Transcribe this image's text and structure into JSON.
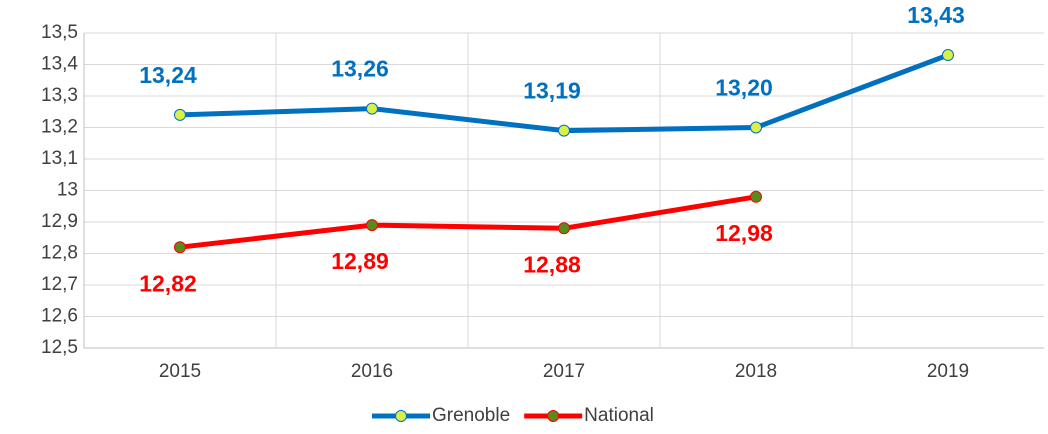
{
  "chart_data": {
    "type": "line",
    "categories": [
      "2015",
      "2016",
      "2017",
      "2018",
      "2019"
    ],
    "series": [
      {
        "name": "Grenoble",
        "color": "#0070c0",
        "marker_color": "#d9f04a",
        "values": [
          13.24,
          13.26,
          13.19,
          13.2,
          13.43
        ],
        "value_labels": [
          "13,24",
          "13,26",
          "13,19",
          "13,20",
          "13,43"
        ],
        "label_position": "above"
      },
      {
        "name": "National",
        "color": "#ff0000",
        "marker_color": "#5a8a1e",
        "values": [
          12.82,
          12.89,
          12.88,
          12.98,
          null
        ],
        "value_labels": [
          "12,82",
          "12,89",
          "12,88",
          "12,98",
          null
        ],
        "label_position": "below"
      }
    ],
    "ylim": [
      12.5,
      13.5
    ],
    "yticks": [
      {
        "value": 12.5,
        "label": "12,5"
      },
      {
        "value": 12.6,
        "label": "12,6"
      },
      {
        "value": 12.7,
        "label": "12,7"
      },
      {
        "value": 12.8,
        "label": "12,8"
      },
      {
        "value": 12.9,
        "label": "12,9"
      },
      13,
      {
        "value": 13.1,
        "label": "13,1"
      },
      {
        "value": 13.2,
        "label": "13,2"
      },
      {
        "value": 13.3,
        "label": "13,3"
      },
      {
        "value": 13.4,
        "label": "13,4"
      },
      {
        "value": 13.5,
        "label": "13,5"
      }
    ],
    "grid": true,
    "legend": "bottom"
  }
}
